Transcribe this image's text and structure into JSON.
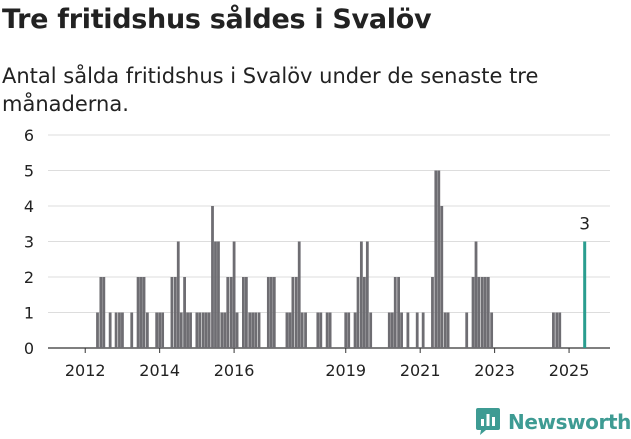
{
  "header": {
    "title": "Tre fritidshus såldes i Svalöv",
    "subtitle": "Antal sålda fritidshus i Svalöv under de senaste tre månaderna."
  },
  "brand": {
    "name": "Newsworthy",
    "icon": "newsworthy-logo-icon",
    "color": "#3e9b93"
  },
  "colors": {
    "bar": "#6e6d72",
    "highlight": "#2a9d8f",
    "grid": "#dddddd",
    "axis": "#333333"
  },
  "chart_data": {
    "type": "bar",
    "ylim": [
      0,
      6
    ],
    "yticks": [
      0,
      1,
      2,
      3,
      4,
      5,
      6
    ],
    "xlim": [
      2011.0,
      2026.1
    ],
    "xticks": [
      {
        "value": 2012,
        "label": "2012"
      },
      {
        "value": 2014,
        "label": "2014"
      },
      {
        "value": 2016,
        "label": "2016"
      },
      {
        "value": 2019,
        "label": "2019"
      },
      {
        "value": 2021,
        "label": "2021"
      },
      {
        "value": 2023,
        "label": "2023"
      },
      {
        "value": 2025,
        "label": "2025"
      }
    ],
    "series": [
      {
        "values": [
          [
            2012.33,
            1
          ],
          [
            2012.42,
            2
          ],
          [
            2012.5,
            2
          ],
          [
            2012.67,
            1
          ],
          [
            2012.83,
            1
          ],
          [
            2012.92,
            1
          ],
          [
            2013.0,
            1
          ],
          [
            2013.25,
            1
          ],
          [
            2013.42,
            2
          ],
          [
            2013.5,
            2
          ],
          [
            2013.58,
            2
          ],
          [
            2013.67,
            1
          ],
          [
            2013.92,
            1
          ],
          [
            2014.0,
            1
          ],
          [
            2014.08,
            1
          ],
          [
            2014.33,
            2
          ],
          [
            2014.42,
            2
          ],
          [
            2014.5,
            3
          ],
          [
            2014.58,
            1
          ],
          [
            2014.67,
            2
          ],
          [
            2014.75,
            1
          ],
          [
            2014.83,
            1
          ],
          [
            2015.0,
            1
          ],
          [
            2015.08,
            1
          ],
          [
            2015.17,
            1
          ],
          [
            2015.25,
            1
          ],
          [
            2015.33,
            1
          ],
          [
            2015.42,
            4
          ],
          [
            2015.5,
            3
          ],
          [
            2015.58,
            3
          ],
          [
            2015.67,
            1
          ],
          [
            2015.75,
            1
          ],
          [
            2015.83,
            2
          ],
          [
            2015.92,
            2
          ],
          [
            2016.0,
            3
          ],
          [
            2016.08,
            1
          ],
          [
            2016.25,
            2
          ],
          [
            2016.33,
            2
          ],
          [
            2016.42,
            1
          ],
          [
            2016.5,
            1
          ],
          [
            2016.58,
            1
          ],
          [
            2016.67,
            1
          ],
          [
            2016.92,
            2
          ],
          [
            2017.0,
            2
          ],
          [
            2017.08,
            2
          ],
          [
            2017.42,
            1
          ],
          [
            2017.5,
            1
          ],
          [
            2017.58,
            2
          ],
          [
            2017.67,
            2
          ],
          [
            2017.75,
            3
          ],
          [
            2017.83,
            1
          ],
          [
            2017.92,
            1
          ],
          [
            2018.25,
            1
          ],
          [
            2018.33,
            1
          ],
          [
            2018.5,
            1
          ],
          [
            2018.58,
            1
          ],
          [
            2019.0,
            1
          ],
          [
            2019.08,
            1
          ],
          [
            2019.25,
            1
          ],
          [
            2019.33,
            2
          ],
          [
            2019.42,
            3
          ],
          [
            2019.5,
            2
          ],
          [
            2019.58,
            3
          ],
          [
            2019.67,
            1
          ],
          [
            2020.17,
            1
          ],
          [
            2020.25,
            1
          ],
          [
            2020.33,
            2
          ],
          [
            2020.42,
            2
          ],
          [
            2020.5,
            1
          ],
          [
            2020.67,
            1
          ],
          [
            2020.92,
            1
          ],
          [
            2021.08,
            1
          ],
          [
            2021.33,
            2
          ],
          [
            2021.42,
            5
          ],
          [
            2021.5,
            5
          ],
          [
            2021.58,
            4
          ],
          [
            2021.67,
            1
          ],
          [
            2021.75,
            1
          ],
          [
            2022.25,
            1
          ],
          [
            2022.42,
            2
          ],
          [
            2022.5,
            3
          ],
          [
            2022.58,
            2
          ],
          [
            2022.67,
            2
          ],
          [
            2022.75,
            2
          ],
          [
            2022.83,
            2
          ],
          [
            2022.92,
            1
          ],
          [
            2024.58,
            1
          ],
          [
            2024.67,
            1
          ],
          [
            2024.75,
            1
          ]
        ]
      }
    ],
    "highlight": {
      "x": 2025.42,
      "value": 3,
      "label": "3"
    }
  }
}
